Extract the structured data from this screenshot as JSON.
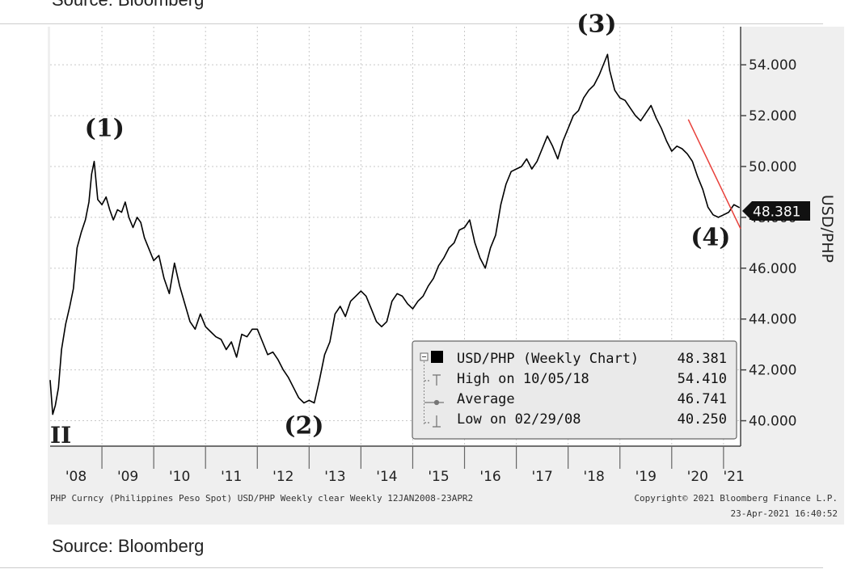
{
  "source_top": "Source: Bloomberg",
  "source_bottom": "Source: Bloomberg",
  "watermark": "II",
  "footer": {
    "left": "PHP Curncy (Philippines Peso Spot) USD/PHP Weekly clear  Weekly 12JAN2008-23APR2",
    "right": "Copyright© 2021 Bloomberg Finance L.P.",
    "timestamp": "23-Apr-2021 16:40:52"
  },
  "legend": {
    "rows": [
      {
        "label": "USD/PHP (Weekly Chart)",
        "value": "48.381"
      },
      {
        "label": "High on 10/05/18",
        "value": "54.410"
      },
      {
        "label": "Average",
        "value": "46.741"
      },
      {
        "label": "Low on 02/29/08",
        "value": "40.250"
      }
    ]
  },
  "price_tag": "48.381",
  "annotations": [
    {
      "label": "(1)",
      "x": 2009.05,
      "y": 51.2
    },
    {
      "label": "(2)",
      "x": 2012.9,
      "y": 39.5
    },
    {
      "label": "(3)",
      "x": 2018.55,
      "y": 55.3
    },
    {
      "label": "(4)",
      "x": 2020.75,
      "y": 46.9
    }
  ],
  "chart_data": {
    "type": "line",
    "title": "USD/PHP (Weekly Chart)",
    "ylabel": "USD/PHP",
    "xlabel": "",
    "xlim": [
      2008.0,
      2021.33
    ],
    "ylim": [
      39.0,
      55.5
    ],
    "x_ticks": [
      {
        "label": "'08",
        "x": 2008.5
      },
      {
        "label": "'09",
        "x": 2009.5
      },
      {
        "label": "'10",
        "x": 2010.5
      },
      {
        "label": "'11",
        "x": 2011.5
      },
      {
        "label": "'12",
        "x": 2012.5
      },
      {
        "label": "'13",
        "x": 2013.5
      },
      {
        "label": "'14",
        "x": 2014.5
      },
      {
        "label": "'15",
        "x": 2015.5
      },
      {
        "label": "'16",
        "x": 2016.5
      },
      {
        "label": "'17",
        "x": 2017.5
      },
      {
        "label": "'18",
        "x": 2018.5
      },
      {
        "label": "'19",
        "x": 2019.5
      },
      {
        "label": "'20",
        "x": 2020.5
      },
      {
        "label": "'21",
        "x": 2021.2
      }
    ],
    "y_ticks": [
      {
        "label": "40.000",
        "y": 40
      },
      {
        "label": "42.000",
        "y": 42
      },
      {
        "label": "44.000",
        "y": 44
      },
      {
        "label": "46.000",
        "y": 46
      },
      {
        "label": "48.000",
        "y": 48
      },
      {
        "label": "50.000",
        "y": 50
      },
      {
        "label": "52.000",
        "y": 52
      },
      {
        "label": "54.000",
        "y": 54
      }
    ],
    "series": [
      {
        "name": "USD/PHP",
        "color": "#000000",
        "x": [
          2008.0,
          2008.05,
          2008.1,
          2008.16,
          2008.22,
          2008.3,
          2008.38,
          2008.45,
          2008.52,
          2008.6,
          2008.68,
          2008.75,
          2008.8,
          2008.85,
          2008.92,
          2009.0,
          2009.08,
          2009.15,
          2009.22,
          2009.3,
          2009.38,
          2009.45,
          2009.52,
          2009.6,
          2009.68,
          2009.75,
          2009.82,
          2009.9,
          2010.0,
          2010.1,
          2010.2,
          2010.3,
          2010.4,
          2010.5,
          2010.6,
          2010.7,
          2010.8,
          2010.9,
          2011.0,
          2011.1,
          2011.2,
          2011.3,
          2011.4,
          2011.5,
          2011.6,
          2011.7,
          2011.8,
          2011.9,
          2012.0,
          2012.1,
          2012.2,
          2012.3,
          2012.4,
          2012.5,
          2012.6,
          2012.7,
          2012.8,
          2012.9,
          2013.0,
          2013.1,
          2013.2,
          2013.3,
          2013.4,
          2013.5,
          2013.6,
          2013.7,
          2013.8,
          2013.9,
          2014.0,
          2014.1,
          2014.2,
          2014.3,
          2014.4,
          2014.5,
          2014.6,
          2014.7,
          2014.8,
          2014.9,
          2015.0,
          2015.1,
          2015.2,
          2015.3,
          2015.4,
          2015.5,
          2015.6,
          2015.7,
          2015.8,
          2015.9,
          2016.0,
          2016.1,
          2016.2,
          2016.3,
          2016.4,
          2016.5,
          2016.6,
          2016.7,
          2016.8,
          2016.9,
          2017.0,
          2017.1,
          2017.2,
          2017.3,
          2017.4,
          2017.5,
          2017.6,
          2017.7,
          2017.8,
          2017.9,
          2018.0,
          2018.1,
          2018.2,
          2018.3,
          2018.4,
          2018.5,
          2018.6,
          2018.7,
          2018.76,
          2018.8,
          2018.9,
          2019.0,
          2019.1,
          2019.2,
          2019.3,
          2019.4,
          2019.5,
          2019.6,
          2019.7,
          2019.8,
          2019.9,
          2020.0,
          2020.1,
          2020.2,
          2020.3,
          2020.4,
          2020.5,
          2020.6,
          2020.7,
          2020.8,
          2020.9,
          2021.0,
          2021.1,
          2021.2,
          2021.31
        ],
        "y": [
          41.6,
          40.25,
          40.6,
          41.3,
          42.8,
          43.8,
          44.5,
          45.2,
          46.8,
          47.4,
          47.9,
          48.6,
          49.7,
          50.2,
          48.7,
          48.5,
          48.8,
          48.3,
          47.9,
          48.3,
          48.2,
          48.6,
          48.0,
          47.6,
          48.0,
          47.8,
          47.2,
          46.8,
          46.3,
          46.5,
          45.6,
          45.0,
          46.2,
          45.3,
          44.6,
          43.9,
          43.6,
          44.2,
          43.7,
          43.5,
          43.3,
          43.2,
          42.8,
          43.1,
          42.5,
          43.4,
          43.3,
          43.6,
          43.6,
          43.1,
          42.6,
          42.7,
          42.4,
          42.0,
          41.7,
          41.3,
          40.9,
          40.7,
          40.8,
          40.7,
          41.6,
          42.6,
          43.1,
          44.2,
          44.5,
          44.1,
          44.7,
          44.9,
          45.1,
          44.9,
          44.4,
          43.9,
          43.7,
          43.9,
          44.7,
          45.0,
          44.9,
          44.6,
          44.4,
          44.7,
          44.9,
          45.3,
          45.6,
          46.1,
          46.4,
          46.8,
          47.0,
          47.5,
          47.6,
          47.9,
          47.0,
          46.4,
          46.0,
          46.8,
          47.3,
          48.5,
          49.3,
          49.8,
          49.9,
          50.0,
          50.3,
          49.9,
          50.2,
          50.7,
          51.2,
          50.8,
          50.3,
          51.0,
          51.5,
          52.0,
          52.2,
          52.7,
          53.0,
          53.2,
          53.6,
          54.1,
          54.41,
          53.8,
          53.0,
          52.7,
          52.6,
          52.3,
          52.0,
          51.8,
          52.1,
          52.4,
          51.9,
          51.5,
          51.0,
          50.6,
          50.8,
          50.7,
          50.5,
          50.2,
          49.6,
          49.1,
          48.4,
          48.1,
          48.0,
          48.1,
          48.2,
          48.5,
          48.381
        ]
      },
      {
        "name": "Trend line",
        "color": "#e8403a",
        "x": [
          2020.32,
          2021.33
        ],
        "y": [
          51.85,
          47.55
        ]
      }
    ]
  }
}
